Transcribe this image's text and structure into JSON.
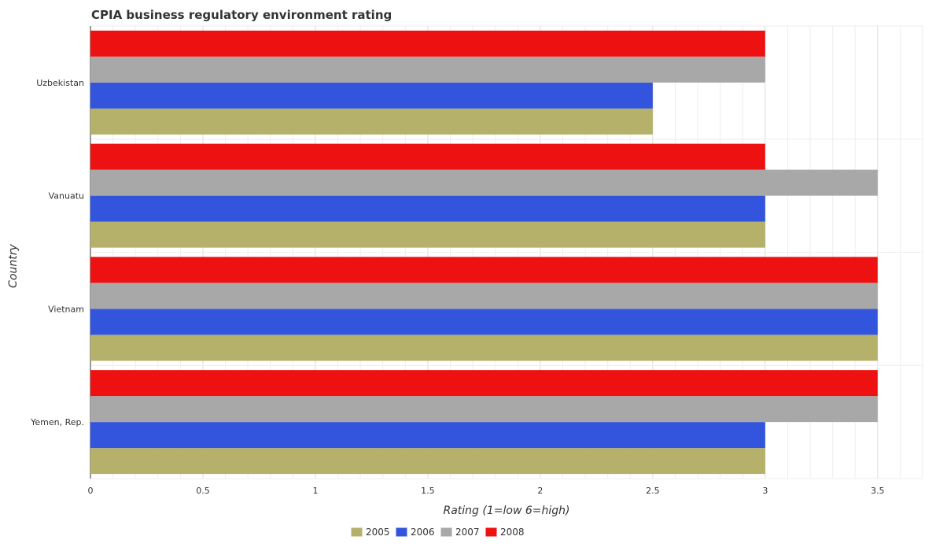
{
  "chart_data": {
    "type": "bar",
    "orientation": "horizontal",
    "title": "CPIA business regulatory environment rating",
    "xlabel": "Rating (1=low 6=high)",
    "ylabel": "Country",
    "xlim": [
      0,
      3.7
    ],
    "xticks": [
      0,
      0.5,
      1,
      1.5,
      2,
      2.5,
      3,
      3.5
    ],
    "xtick_labels": [
      "0",
      "0.5",
      "1",
      "1.5",
      "2",
      "2.5",
      "3",
      "3.5"
    ],
    "categories": [
      "Uzbekistan",
      "Vanuatu",
      "Vietnam",
      "Yemen, Rep."
    ],
    "series": [
      {
        "name": "2005",
        "color": "#b5b06a",
        "values": [
          2.5,
          3.0,
          3.5,
          3.0
        ]
      },
      {
        "name": "2006",
        "color": "#3355dd",
        "values": [
          2.5,
          3.0,
          3.5,
          3.0
        ]
      },
      {
        "name": "2007",
        "color": "#a8a8a8",
        "values": [
          3.0,
          3.5,
          3.5,
          3.5
        ]
      },
      {
        "name": "2008",
        "color": "#ee1111",
        "values": [
          3.0,
          3.0,
          3.5,
          3.5
        ]
      }
    ],
    "grid": true,
    "legend": "bottom-center"
  }
}
